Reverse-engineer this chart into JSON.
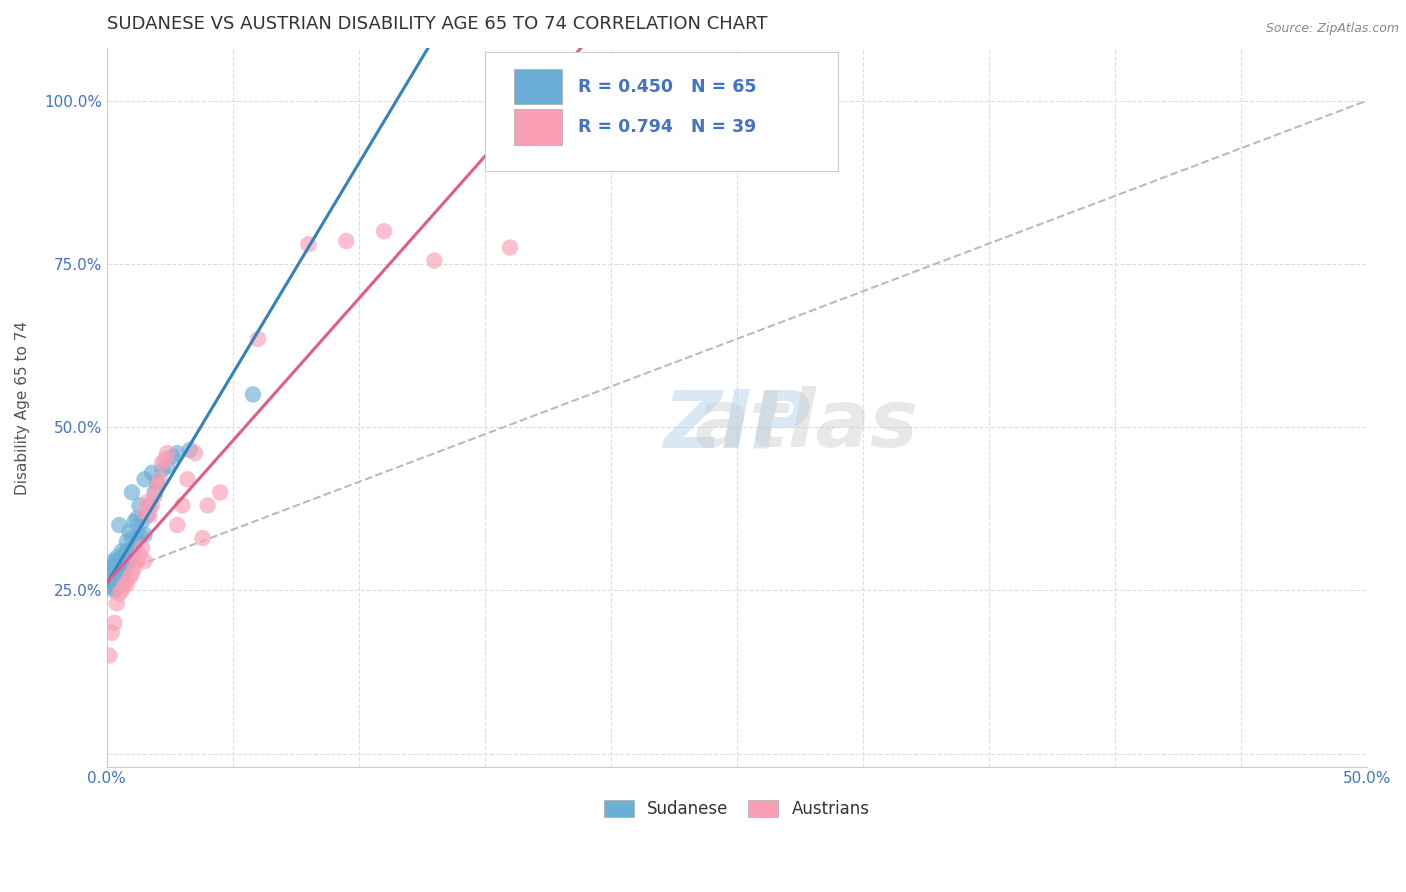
{
  "title": "SUDANESE VS AUSTRIAN DISABILITY AGE 65 TO 74 CORRELATION CHART",
  "source_text": "Source: ZipAtlas.com",
  "ylabel": "Disability Age 65 to 74",
  "xlim": [
    0.0,
    0.5
  ],
  "ylim": [
    -0.02,
    1.08
  ],
  "xticks": [
    0.0,
    0.05,
    0.1,
    0.15,
    0.2,
    0.25,
    0.3,
    0.35,
    0.4,
    0.45,
    0.5
  ],
  "xticklabels": [
    "0.0%",
    "",
    "",
    "",
    "",
    "",
    "",
    "",
    "",
    "",
    "50.0%"
  ],
  "ytick_positions": [
    0.0,
    0.25,
    0.5,
    0.75,
    1.0
  ],
  "yticklabels": [
    "",
    "25.0%",
    "50.0%",
    "75.0%",
    "100.0%"
  ],
  "sudanese_color": "#6baed6",
  "austrian_color": "#fa9fb5",
  "sudanese_line_color": "#3182bd",
  "austrian_line_color": "#e05c8a",
  "ref_line_color": "#bbbbbb",
  "sudanese_x": [
    0.001,
    0.001,
    0.001,
    0.002,
    0.002,
    0.002,
    0.002,
    0.002,
    0.003,
    0.003,
    0.003,
    0.003,
    0.003,
    0.003,
    0.003,
    0.004,
    0.004,
    0.004,
    0.004,
    0.004,
    0.004,
    0.004,
    0.005,
    0.005,
    0.005,
    0.005,
    0.005,
    0.005,
    0.006,
    0.006,
    0.006,
    0.006,
    0.006,
    0.007,
    0.007,
    0.007,
    0.007,
    0.008,
    0.008,
    0.008,
    0.009,
    0.009,
    0.01,
    0.01,
    0.01,
    0.011,
    0.011,
    0.012,
    0.012,
    0.013,
    0.013,
    0.014,
    0.015,
    0.015,
    0.016,
    0.017,
    0.018,
    0.019,
    0.02,
    0.022,
    0.024,
    0.026,
    0.028,
    0.033,
    0.058
  ],
  "sudanese_y": [
    0.265,
    0.27,
    0.28,
    0.255,
    0.262,
    0.268,
    0.275,
    0.285,
    0.25,
    0.258,
    0.265,
    0.272,
    0.28,
    0.288,
    0.295,
    0.255,
    0.262,
    0.27,
    0.278,
    0.285,
    0.293,
    0.3,
    0.26,
    0.268,
    0.275,
    0.283,
    0.292,
    0.35,
    0.265,
    0.272,
    0.28,
    0.29,
    0.31,
    0.275,
    0.285,
    0.295,
    0.305,
    0.295,
    0.31,
    0.325,
    0.295,
    0.34,
    0.31,
    0.33,
    0.4,
    0.315,
    0.355,
    0.33,
    0.36,
    0.335,
    0.38,
    0.355,
    0.335,
    0.42,
    0.365,
    0.38,
    0.43,
    0.4,
    0.415,
    0.435,
    0.44,
    0.455,
    0.46,
    0.465,
    0.55
  ],
  "austrian_x": [
    0.001,
    0.002,
    0.003,
    0.004,
    0.005,
    0.006,
    0.007,
    0.008,
    0.009,
    0.01,
    0.011,
    0.012,
    0.013,
    0.014,
    0.015,
    0.015,
    0.016,
    0.017,
    0.018,
    0.019,
    0.02,
    0.021,
    0.022,
    0.023,
    0.024,
    0.028,
    0.03,
    0.032,
    0.035,
    0.038,
    0.04,
    0.045,
    0.06,
    0.08,
    0.095,
    0.11,
    0.13,
    0.16,
    0.17
  ],
  "austrian_y": [
    0.15,
    0.185,
    0.2,
    0.23,
    0.245,
    0.25,
    0.258,
    0.26,
    0.27,
    0.275,
    0.285,
    0.295,
    0.305,
    0.315,
    0.295,
    0.37,
    0.385,
    0.365,
    0.38,
    0.395,
    0.41,
    0.42,
    0.445,
    0.45,
    0.46,
    0.35,
    0.38,
    0.42,
    0.46,
    0.33,
    0.38,
    0.4,
    0.635,
    0.78,
    0.785,
    0.8,
    0.755,
    0.775,
    1.0
  ],
  "legend_sudanese_label": "R = 0.450   N = 65",
  "legend_austrian_label": "R = 0.794   N = 39",
  "bottom_legend_sudanese": "Sudanese",
  "bottom_legend_austrian": "Austrians"
}
